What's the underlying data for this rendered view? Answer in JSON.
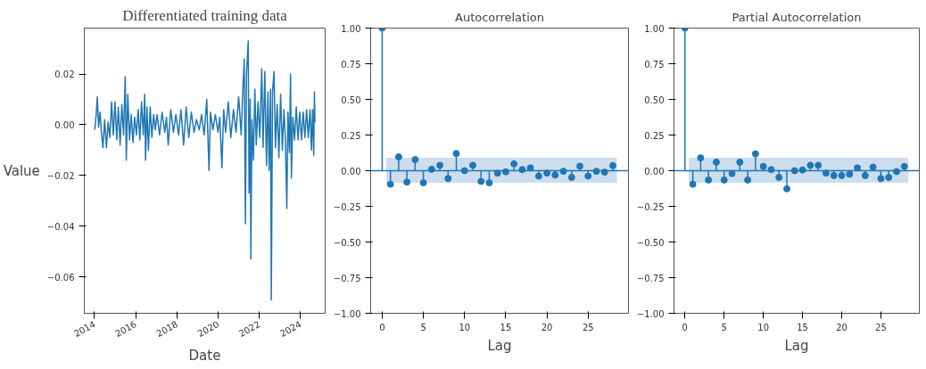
{
  "chart_data": [
    {
      "type": "line",
      "title": "Differentiated training data",
      "xlabel": "Date",
      "ylabel": "Value",
      "grid": false,
      "line_style": "solid",
      "xlim": [
        "2013-07-05",
        "2025-03-15"
      ],
      "xticks": [
        "2014",
        "2016",
        "2018",
        "2020",
        "2022",
        "2024"
      ],
      "ylim": [
        -0.0743,
        0.0381
      ],
      "yticks": [
        {
          "value": -0.06,
          "label": "−0.06"
        },
        {
          "value": -0.04,
          "label": "−0.04"
        },
        {
          "value": -0.02,
          "label": "−0.02"
        },
        {
          "value": 0,
          "label": "0.00"
        },
        {
          "value": 0.02,
          "label": "0.02"
        }
      ],
      "series": [
        {
          "color": "#1f77b4",
          "x": [
            "2014-01-05",
            "2014-02-01",
            "2014-02-20",
            "2014-03-15",
            "2014-04-10",
            "2014-05-01",
            "2014-06-01",
            "2014-07-01",
            "2014-08-01",
            "2014-09-01",
            "2014-10-01",
            "2014-11-01",
            "2014-12-01",
            "2015-01-01",
            "2015-02-01",
            "2015-03-01",
            "2015-04-01",
            "2015-05-01",
            "2015-06-01",
            "2015-07-01",
            "2015-07-20",
            "2015-08-15",
            "2015-09-15",
            "2015-10-15",
            "2015-11-15",
            "2015-12-15",
            "2016-01-15",
            "2016-02-15",
            "2016-03-15",
            "2016-04-15",
            "2016-05-15",
            "2016-06-10",
            "2016-06-25",
            "2016-07-20",
            "2016-08-15",
            "2016-09-15",
            "2016-10-15",
            "2016-11-15",
            "2016-12-15",
            "2017-01-15",
            "2017-03-01",
            "2017-04-15",
            "2017-06-01",
            "2017-07-01",
            "2017-08-01",
            "2017-09-15",
            "2017-11-01",
            "2017-12-15",
            "2018-02-01",
            "2018-03-15",
            "2018-05-01",
            "2018-06-15",
            "2018-08-01",
            "2018-09-15",
            "2018-11-01",
            "2018-12-15",
            "2019-02-01",
            "2019-03-15",
            "2019-05-01",
            "2019-06-15",
            "2019-07-25",
            "2019-08-20",
            "2019-10-01",
            "2019-11-15",
            "2020-01-01",
            "2020-02-01",
            "2020-03-10",
            "2020-04-10",
            "2020-05-15",
            "2020-07-01",
            "2020-08-15",
            "2020-10-01",
            "2020-11-15",
            "2021-01-01",
            "2021-02-15",
            "2021-03-15",
            "2021-04-10",
            "2021-05-01",
            "2021-05-20",
            "2021-06-20",
            "2021-07-05",
            "2021-07-25",
            "2021-08-05",
            "2021-08-25",
            "2021-09-20",
            "2021-10-15",
            "2021-11-10",
            "2021-12-10",
            "2022-01-10",
            "2022-02-15",
            "2022-03-10",
            "2022-04-10",
            "2022-05-10",
            "2022-06-05",
            "2022-06-25",
            "2022-07-20",
            "2022-08-03",
            "2022-08-25",
            "2022-09-20",
            "2022-10-15",
            "2022-11-15",
            "2022-12-15",
            "2023-01-15",
            "2023-02-15",
            "2023-03-15",
            "2023-04-10",
            "2023-05-05",
            "2023-05-25",
            "2023-06-20",
            "2023-07-10",
            "2023-07-25",
            "2023-08-20",
            "2023-09-20",
            "2023-10-20",
            "2023-11-20",
            "2023-12-20",
            "2024-01-20",
            "2024-02-20",
            "2024-03-20",
            "2024-04-20",
            "2024-05-20",
            "2024-06-20",
            "2024-07-15",
            "2024-08-05",
            "2024-08-25",
            "2024-09-05",
            "2024-09-15"
          ],
          "values": [
            -0.002,
            0.004,
            0.011,
            -0.001,
            0.005,
            -0.002,
            -0.009,
            0.002,
            -0.009,
            0.001,
            -0.005,
            0.009,
            -0.004,
            0.009,
            -0.006,
            0.007,
            -0.008,
            0.008,
            -0.004,
            0.019,
            -0.014,
            0.012,
            -0.006,
            0.004,
            -0.007,
            0.003,
            -0.004,
            0.006,
            -0.006,
            0.009,
            -0.004,
            0.012,
            -0.014,
            0.007,
            -0.01,
            0.007,
            -0.005,
            0.004,
            -0.002,
            0.004,
            -0.004,
            0.005,
            -0.003,
            0.003,
            -0.008,
            0.006,
            -0.003,
            0.004,
            -0.004,
            0.006,
            -0.008,
            0.007,
            -0.005,
            0.005,
            -0.003,
            0.002,
            -0.002,
            0.004,
            -0.004,
            0.01,
            -0.018,
            0.005,
            -0.002,
            0.004,
            -0.003,
            0.003,
            -0.017,
            0.006,
            -0.003,
            0.009,
            -0.005,
            0.006,
            -0.003,
            0.011,
            -0.004,
            0.013,
            0.026,
            -0.039,
            0.02,
            0.033,
            -0.027,
            0.01,
            -0.053,
            0.002,
            -0.014,
            0.014,
            -0.008,
            0.009,
            -0.005,
            0.022,
            -0.009,
            0.021,
            -0.016,
            0.013,
            -0.018,
            0.014,
            -0.069,
            0.013,
            0.021,
            -0.009,
            0.008,
            -0.013,
            0.012,
            -0.01,
            0.006,
            -0.006,
            -0.033,
            0.005,
            -0.011,
            0.02,
            -0.021,
            0.003,
            -0.006,
            0.007,
            -0.006,
            0.005,
            -0.006,
            0.005,
            -0.005,
            0.006,
            -0.005,
            0.006,
            -0.01,
            0.006,
            -0.012,
            0.013,
            0.001
          ]
        }
      ]
    },
    {
      "type": "lollipop",
      "title": "Autocorrelation",
      "xlabel": "Lag",
      "grid": false,
      "marker": "circle",
      "xlim": [
        -1.4,
        29.9
      ],
      "xticks": [
        0,
        5,
        10,
        15,
        20,
        25
      ],
      "ylim": [
        -1,
        1
      ],
      "yticks": [
        {
          "value": -1,
          "label": "−1.00"
        },
        {
          "value": -0.75,
          "label": "−0.75"
        },
        {
          "value": -0.5,
          "label": "−0.50"
        },
        {
          "value": -0.25,
          "label": "−0.25"
        },
        {
          "value": 0,
          "label": "0.00"
        },
        {
          "value": 0.25,
          "label": "0.25"
        },
        {
          "value": 0.5,
          "label": "0.50"
        },
        {
          "value": 0.75,
          "label": "0.75"
        },
        {
          "value": 1,
          "label": "1.00"
        }
      ],
      "ref_lines": [
        {
          "axis": "y",
          "value": 0,
          "color": "#1f77b4"
        }
      ],
      "bands": [
        {
          "axis": "y",
          "from": -0.085,
          "to": 0.09,
          "color": "#c6d9ec"
        }
      ],
      "series": [
        {
          "color": "#1f77b4",
          "x": [
            0,
            1,
            2,
            3,
            4,
            5,
            6,
            7,
            8,
            9,
            10,
            11,
            12,
            13,
            14,
            15,
            16,
            17,
            18,
            19,
            20,
            21,
            22,
            23,
            24,
            25,
            26,
            27,
            28
          ],
          "values": [
            1,
            -0.095,
            0.097,
            -0.08,
            0.078,
            -0.085,
            0.01,
            0.038,
            -0.055,
            0.12,
            0,
            0.038,
            -0.075,
            -0.085,
            -0.017,
            -0.008,
            0.048,
            0.008,
            0.02,
            -0.038,
            -0.017,
            -0.03,
            -0.004,
            -0.047,
            0.032,
            -0.038,
            -0.004,
            -0.01,
            0.036
          ]
        }
      ]
    },
    {
      "type": "lollipop",
      "title": "Partial Autocorrelation",
      "xlabel": "Lag",
      "grid": false,
      "marker": "circle",
      "xlim": [
        -1.4,
        29.9
      ],
      "xticks": [
        0,
        5,
        10,
        15,
        20,
        25
      ],
      "ylim": [
        -1,
        1
      ],
      "yticks": [
        {
          "value": -1,
          "label": "−1.00"
        },
        {
          "value": -0.75,
          "label": "−0.75"
        },
        {
          "value": -0.5,
          "label": "−0.50"
        },
        {
          "value": -0.25,
          "label": "−0.25"
        },
        {
          "value": 0,
          "label": "0.00"
        },
        {
          "value": 0.25,
          "label": "0.25"
        },
        {
          "value": 0.5,
          "label": "0.50"
        },
        {
          "value": 0.75,
          "label": "0.75"
        },
        {
          "value": 1,
          "label": "1.00"
        }
      ],
      "ref_lines": [
        {
          "axis": "y",
          "value": 0,
          "color": "#1f77b4"
        }
      ],
      "bands": [
        {
          "axis": "y",
          "from": -0.085,
          "to": 0.09,
          "color": "#c6d9ec"
        }
      ],
      "series": [
        {
          "color": "#1f77b4",
          "x": [
            0,
            1,
            2,
            3,
            4,
            5,
            6,
            7,
            8,
            9,
            10,
            11,
            12,
            13,
            14,
            15,
            16,
            17,
            18,
            19,
            20,
            21,
            22,
            23,
            24,
            25,
            26,
            27,
            28
          ],
          "values": [
            1,
            -0.095,
            0.09,
            -0.065,
            0.06,
            -0.065,
            -0.02,
            0.06,
            -0.065,
            0.118,
            0.03,
            0.008,
            -0.047,
            -0.127,
            0,
            0.005,
            0.038,
            0.038,
            -0.017,
            -0.034,
            -0.034,
            -0.025,
            0.02,
            -0.034,
            0.025,
            -0.055,
            -0.047,
            -0.006,
            0.03
          ]
        }
      ]
    }
  ]
}
